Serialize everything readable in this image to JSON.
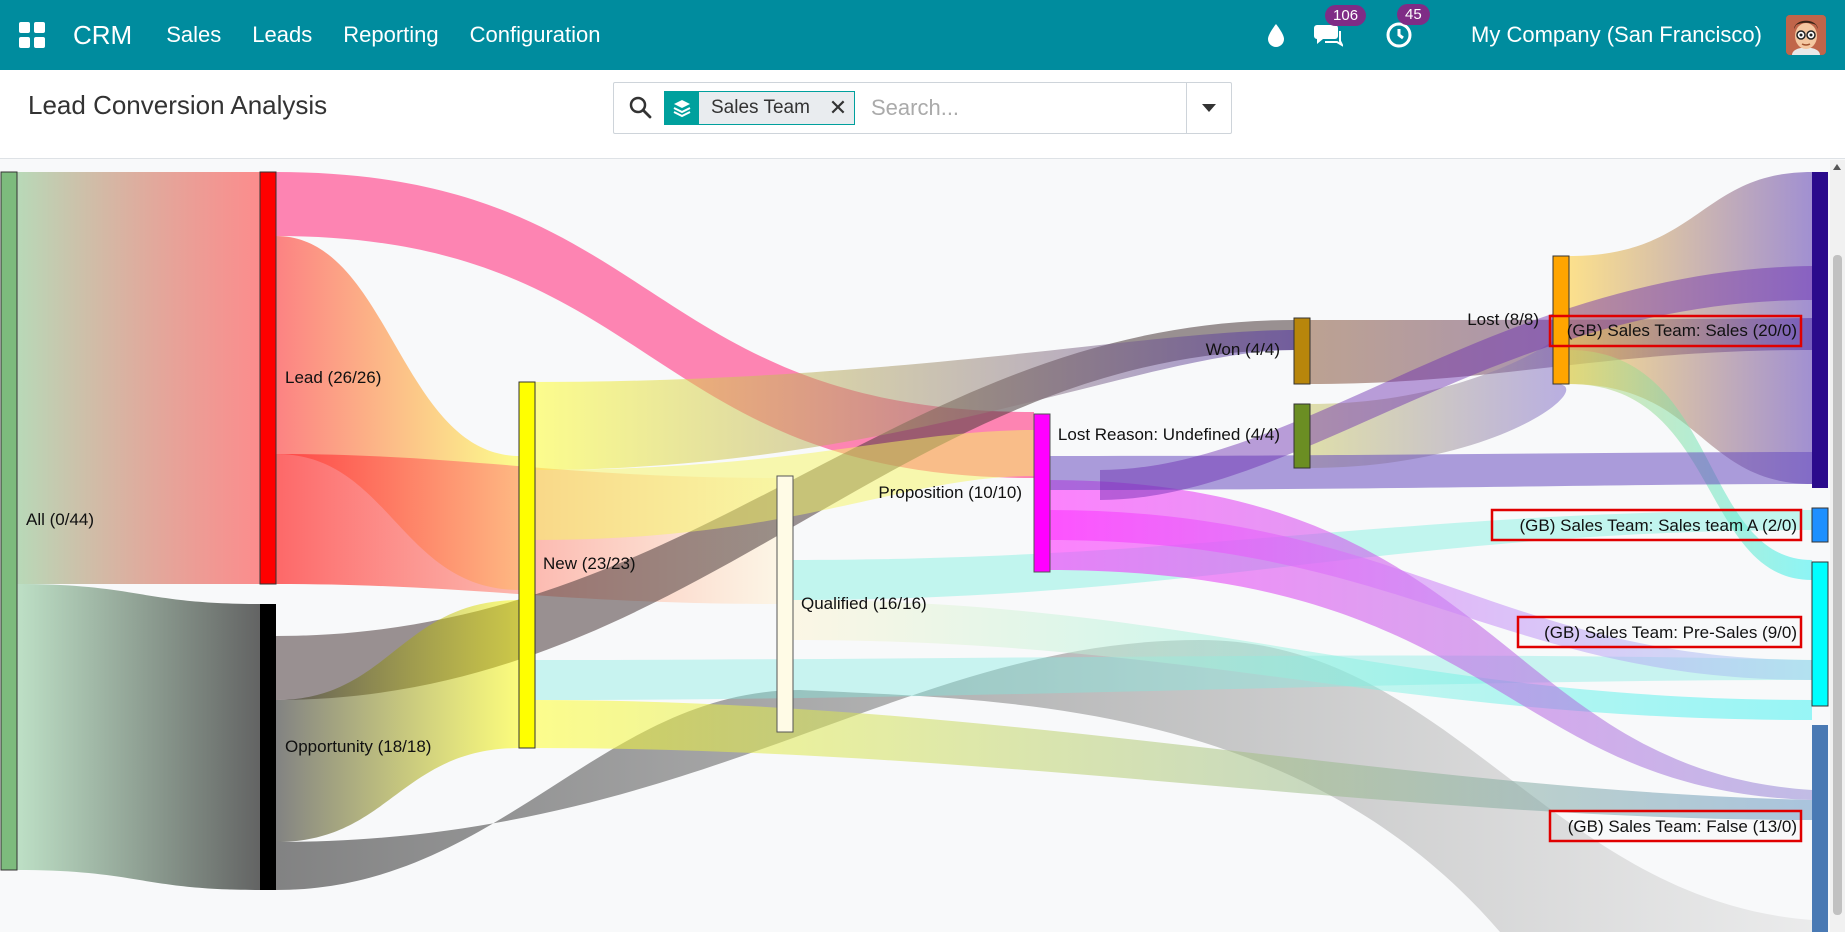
{
  "nav": {
    "brand": "CRM",
    "menu": [
      "Sales",
      "Leads",
      "Reporting",
      "Configuration"
    ],
    "messages_badge": "106",
    "activities_badge": "45",
    "company": "My Company (San Francisco)",
    "color": "#008c9e"
  },
  "control": {
    "title": "Lead Conversion Analysis",
    "facet": "Sales Team",
    "search_placeholder": "Search..."
  },
  "chart_data": {
    "type": "sankey",
    "nodes": [
      {
        "id": "all",
        "label": "All (0/44)",
        "value": 44,
        "color": "#7dbb7d"
      },
      {
        "id": "lead",
        "label": "Lead (26/26)",
        "value": 26,
        "color": "#ff0000"
      },
      {
        "id": "opp",
        "label": "Opportunity (18/18)",
        "value": 18,
        "color": "#000000"
      },
      {
        "id": "new",
        "label": "New (23/23)",
        "value": 23,
        "color": "#ffff00"
      },
      {
        "id": "qual",
        "label": "Qualified (16/16)",
        "value": 16,
        "color": "#fffbe6"
      },
      {
        "id": "prop",
        "label": "Proposition (10/10)",
        "value": 10,
        "color": "#ff00ff"
      },
      {
        "id": "won",
        "label": "Won (4/4)",
        "value": 4,
        "color": "#b8860b"
      },
      {
        "id": "lostreason",
        "label": "Lost Reason: Undefined (4/4)",
        "value": 4,
        "color": "#6b8e23"
      },
      {
        "id": "lost",
        "label": "Lost (8/8)",
        "value": 8,
        "color": "#ffa500"
      },
      {
        "id": "sales",
        "label": "(GB) Sales Team: Sales (20/0)",
        "value": 20,
        "color": "#2b0b8c"
      },
      {
        "id": "salesA",
        "label": "(GB) Sales Team: Sales team A (2/0)",
        "value": 2,
        "color": "#1e90ff"
      },
      {
        "id": "presales",
        "label": "(GB) Sales Team: Pre-Sales (9/0)",
        "value": 9,
        "color": "#00ffff"
      },
      {
        "id": "false",
        "label": "(GB) Sales Team: False (13/0)",
        "value": 13,
        "color": "#4682b4"
      }
    ]
  }
}
